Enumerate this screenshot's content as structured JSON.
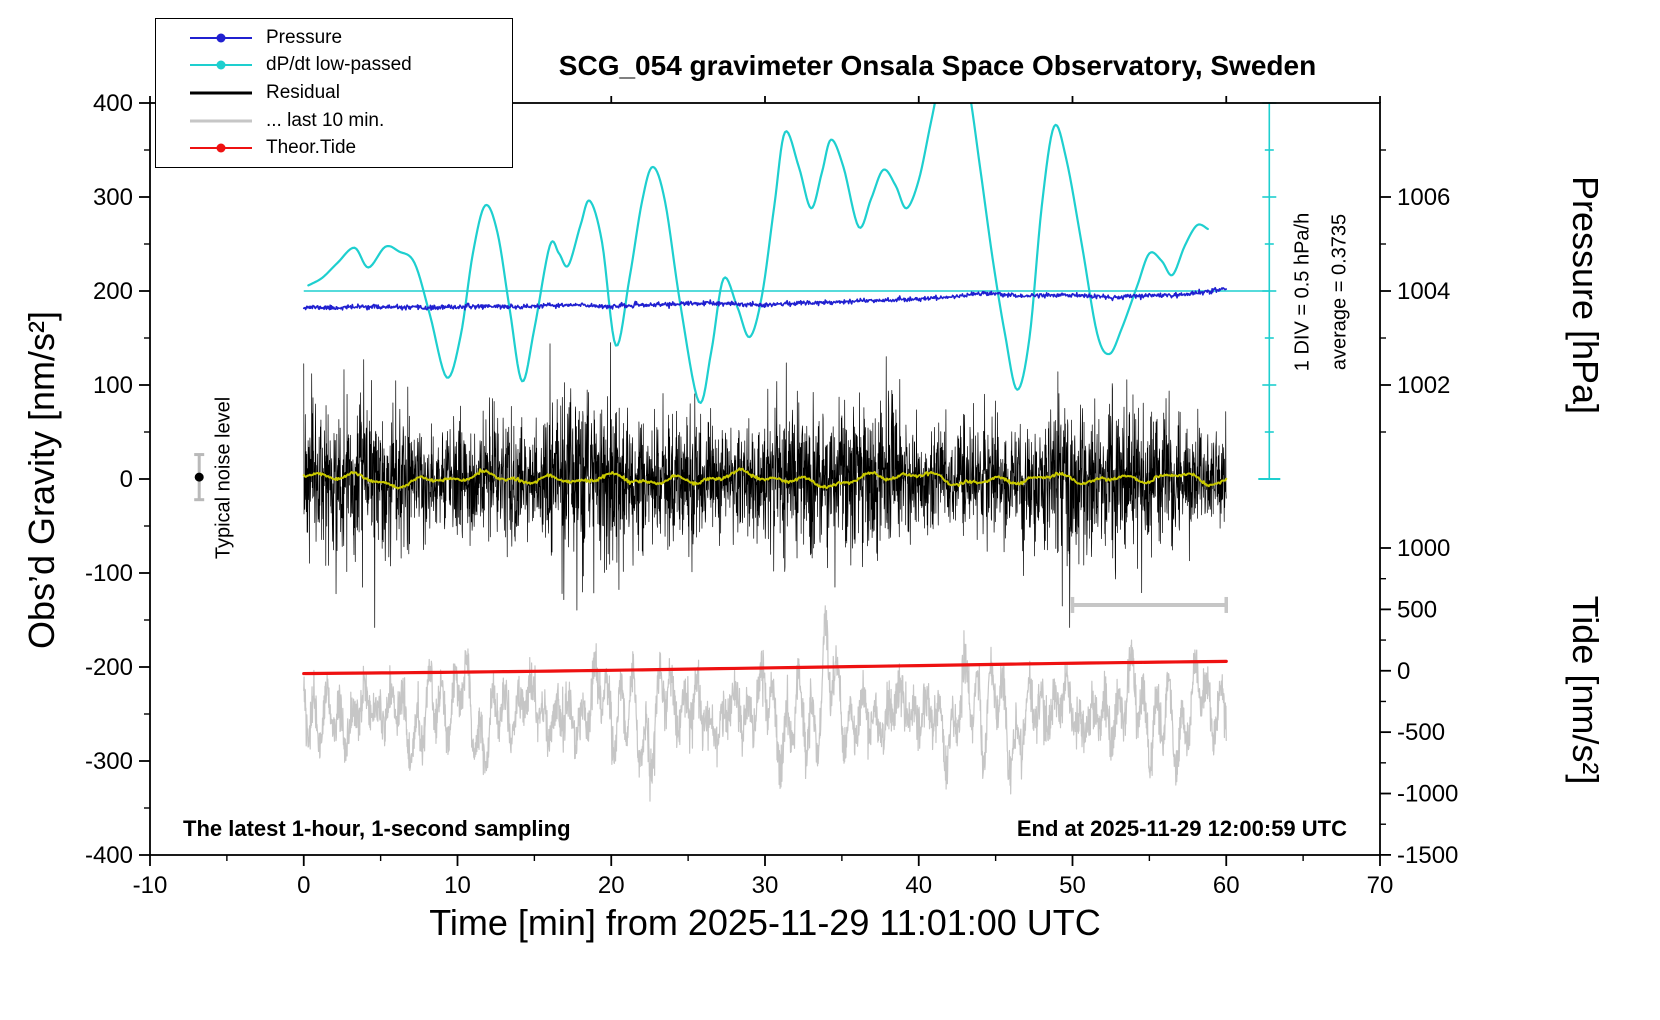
{
  "annotations": {
    "sampling_note": "The latest 1-hour, 1-second sampling",
    "end_note": "End at 2025-11-29 12:00:59 UTC",
    "noise_label": "Typical noise level",
    "div_note": "1 DIV = 0.5 hPa/h",
    "average_note": "average = 0.3735"
  },
  "legend": {
    "items": [
      {
        "label": "Pressure",
        "color": "#2020d0",
        "marker": "dot-line",
        "lw": 2
      },
      {
        "label": "dP/dt low-passed",
        "color": "#1ecfcf",
        "marker": "dot-line",
        "lw": 2
      },
      {
        "label": "Residual",
        "color": "#000000",
        "marker": "line",
        "lw": 3
      },
      {
        "label": "... last 10 min.",
        "color": "#c6c6c6",
        "marker": "line",
        "lw": 3
      },
      {
        "label": "Theor.Tide",
        "color": "#ee1111",
        "marker": "dot-line",
        "lw": 2
      }
    ]
  },
  "chart_data": {
    "type": "line",
    "title": "SCG_054 gravimeter Onsala Space Observatory, Sweden",
    "xlabel": "Time [min] from 2025-11-29 11:01:00 UTC",
    "ylabel": "Obs’d Gravity [nm/s²]",
    "y2label_top": "Pressure [hPa]",
    "y2label_bottom": "Tide [nm/s²]",
    "xlim": [
      -10,
      70
    ],
    "ylim": [
      -400,
      400
    ],
    "grid": false,
    "legend_position": "top-left",
    "axes": {
      "x": {
        "ticks": [
          -10,
          0,
          10,
          20,
          30,
          40,
          50,
          60,
          70
        ],
        "minor_step": 5
      },
      "y": {
        "ticks": [
          400,
          300,
          200,
          100,
          0,
          -100,
          -200,
          -300,
          -400
        ],
        "minor_step": 50
      },
      "pressure": {
        "majors": [
          1006,
          1004,
          1002
        ],
        "minors": [
          1007,
          1005,
          1003,
          1001
        ],
        "ref_pressure": 1004,
        "ref_gravity": 200,
        "gravity_per_hpa": 50
      },
      "tide": {
        "majors": [
          1000,
          500,
          0,
          -500,
          -1000,
          -1500
        ],
        "minors": [
          750,
          250,
          -250,
          -750,
          -1250
        ],
        "ref_tide": 0,
        "ref_gravity": -204,
        "gravity_per_500": 65.3
      }
    },
    "series": {
      "pressure": {
        "label": "Pressure",
        "color": "#2020d0",
        "width": 1.6,
        "noise": 1.2,
        "seed": 11,
        "samples": 1500,
        "x_range": [
          0,
          60
        ],
        "control_points": [
          [
            0,
            183
          ],
          [
            2,
            182
          ],
          [
            4,
            183.5
          ],
          [
            6,
            182.5
          ],
          [
            8,
            182
          ],
          [
            10,
            183
          ],
          [
            12,
            184
          ],
          [
            14,
            183
          ],
          [
            16,
            184.5
          ],
          [
            18,
            185
          ],
          [
            20,
            183.5
          ],
          [
            22,
            185
          ],
          [
            24,
            186
          ],
          [
            26,
            187
          ],
          [
            28,
            186
          ],
          [
            30,
            185.5
          ],
          [
            32,
            187
          ],
          [
            34,
            188
          ],
          [
            36,
            189.5
          ],
          [
            38,
            190.5
          ],
          [
            40,
            191.5
          ],
          [
            42,
            193.5
          ],
          [
            43.5,
            196.5
          ],
          [
            44.5,
            198
          ],
          [
            45.5,
            196.5
          ],
          [
            46.5,
            194.5
          ],
          [
            48,
            195.5
          ],
          [
            49.5,
            196
          ],
          [
            51,
            194.5
          ],
          [
            52.5,
            193
          ],
          [
            54,
            194.5
          ],
          [
            55.5,
            195.5
          ],
          [
            57,
            196
          ],
          [
            58,
            198
          ],
          [
            59,
            200
          ],
          [
            60,
            203
          ]
        ]
      },
      "dpdt_lowpassed": {
        "label": "dP/dt low-passed",
        "color": "#1ecfcf",
        "width": 2.2,
        "control_points": [
          [
            0.3,
            206
          ],
          [
            1.2,
            214
          ],
          [
            2.2,
            230
          ],
          [
            3.3,
            246
          ],
          [
            4.2,
            225
          ],
          [
            5.3,
            247
          ],
          [
            6.2,
            242
          ],
          [
            7.2,
            230
          ],
          [
            8.2,
            175
          ],
          [
            9.3,
            108
          ],
          [
            10.2,
            152
          ],
          [
            11.0,
            240
          ],
          [
            11.8,
            291
          ],
          [
            12.6,
            262
          ],
          [
            13.4,
            180
          ],
          [
            14.2,
            104
          ],
          [
            15.0,
            160
          ],
          [
            16.0,
            248
          ],
          [
            16.6,
            240
          ],
          [
            17.2,
            227
          ],
          [
            18.0,
            270
          ],
          [
            18.6,
            296
          ],
          [
            19.4,
            252
          ],
          [
            20.3,
            142
          ],
          [
            21.2,
            215
          ],
          [
            22.0,
            295
          ],
          [
            22.7,
            332
          ],
          [
            23.5,
            295
          ],
          [
            24.5,
            185
          ],
          [
            25.7,
            82
          ],
          [
            26.5,
            135
          ],
          [
            27.3,
            213
          ],
          [
            28.2,
            183
          ],
          [
            29.0,
            151
          ],
          [
            29.8,
            195
          ],
          [
            30.6,
            290
          ],
          [
            31.3,
            369
          ],
          [
            32.2,
            332
          ],
          [
            33.0,
            288
          ],
          [
            33.7,
            326
          ],
          [
            34.3,
            361
          ],
          [
            35.1,
            332
          ],
          [
            36.1,
            268
          ],
          [
            36.9,
            298
          ],
          [
            37.7,
            329
          ],
          [
            38.5,
            312
          ],
          [
            39.2,
            288
          ],
          [
            40.0,
            318
          ],
          [
            40.8,
            380
          ],
          [
            41.6,
            440
          ],
          [
            42.4,
            462
          ],
          [
            43.2,
            420
          ],
          [
            44.0,
            330
          ],
          [
            44.8,
            235
          ],
          [
            45.6,
            155
          ],
          [
            46.4,
            95
          ],
          [
            47.2,
            150
          ],
          [
            48.0,
            290
          ],
          [
            48.8,
            375
          ],
          [
            49.6,
            340
          ],
          [
            50.6,
            250
          ],
          [
            51.6,
            155
          ],
          [
            52.4,
            133
          ],
          [
            53.2,
            160
          ],
          [
            54.2,
            205
          ],
          [
            55.0,
            240
          ],
          [
            55.8,
            232
          ],
          [
            56.5,
            217
          ],
          [
            57.3,
            248
          ],
          [
            58.1,
            270
          ],
          [
            58.8,
            266
          ]
        ]
      },
      "dpdt_refline": {
        "gravity": 200,
        "x_range": [
          0,
          62.8
        ],
        "color": "#1ecfcf"
      },
      "dpdt_scalebar": {
        "x": 62.8,
        "g_from": 0,
        "g_to": 400,
        "tick_step": 50,
        "major_step": 100,
        "color": "#1ecfcf"
      },
      "residual": {
        "label": "Residual",
        "color": "#000000",
        "width": 0.7,
        "x_range": [
          0,
          60
        ],
        "n": 3600,
        "sigma": 35,
        "envelope": [
          [
            16.5,
            0.22,
            0.8
          ],
          [
            6.3,
            0.13,
            2.1
          ]
        ],
        "spikes": [
          [
            0.003,
            2.6
          ],
          [
            0.015,
            1.7
          ]
        ],
        "clamp": 158,
        "seed": 7
      },
      "residual_smooth": {
        "color": "#c8c800",
        "width": 2,
        "x_range": [
          0,
          60
        ],
        "waves": [
          [
            9.3,
            3,
            0.7
          ],
          [
            4.1,
            3.2,
            2.2
          ],
          [
            2.1,
            2.4,
            4.4
          ],
          [
            13,
            2,
            1.1
          ]
        ],
        "noise": 0.8,
        "seed": 5
      },
      "last10": {
        "label": "... last 10 min.",
        "color": "#c6c6c6",
        "width": 1.2,
        "x_range": [
          0,
          60
        ],
        "center": -248,
        "base_amp": 42,
        "amp_mod": [
          11.5,
          0.45,
          2.4
        ],
        "osc": [
          [
            0.83,
            0.55
          ],
          [
            2.17,
            0.45
          ],
          [
            4.9,
            0.35
          ]
        ],
        "noise": 12,
        "bumps": [
          [
            30.2,
            1.3,
            0.05
          ],
          [
            34.0,
            0.7,
            0.06
          ],
          [
            44.1,
            0.8,
            0.08
          ]
        ],
        "clamp": [
          -398,
          -122
        ],
        "seed": 21
      },
      "scale_bar": {
        "x": [
          50,
          60
        ],
        "gravity": -134,
        "cap_half": 8,
        "color": "#c6c6c6"
      },
      "theor_tide": {
        "label": "Theor.Tide",
        "color": "#ee1111",
        "width": 3.2,
        "points": [
          [
            0,
            -207
          ],
          [
            10,
            -205.5
          ],
          [
            20,
            -203.5
          ],
          [
            30,
            -201
          ],
          [
            40,
            -198.5
          ],
          [
            50,
            -196
          ],
          [
            60,
            -194
          ]
        ]
      },
      "noise_marker": {
        "x": -6.8,
        "dot": 2,
        "err": [
          -22,
          26
        ],
        "bar_color": "#b9b9b9",
        "dot_color": "#000000"
      }
    }
  }
}
